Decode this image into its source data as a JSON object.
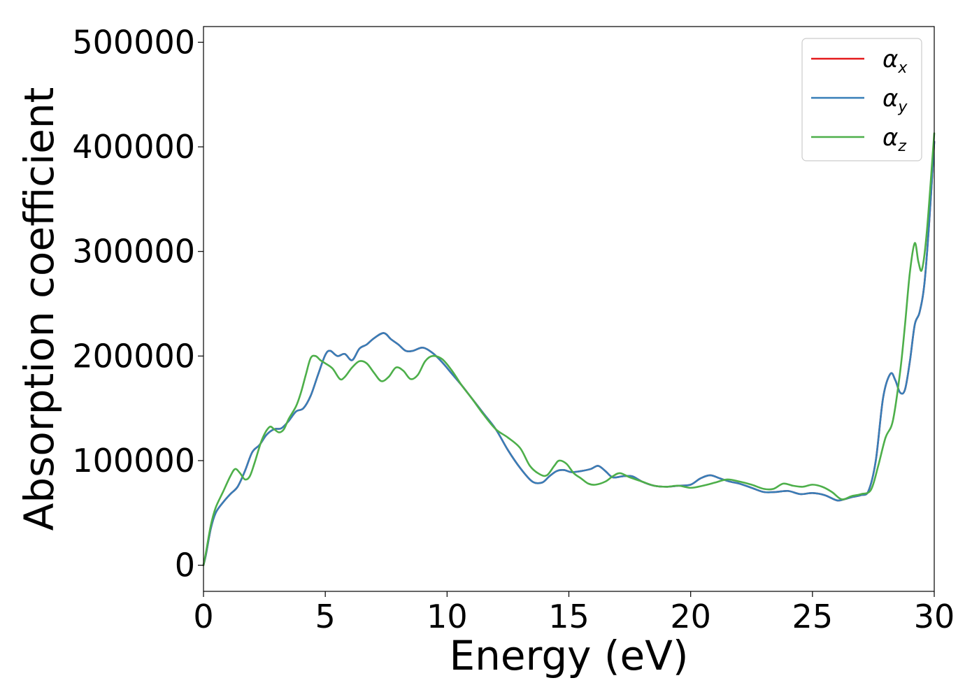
{
  "chart_data": {
    "type": "line",
    "title": "",
    "xlabel": "Energy (eV)",
    "ylabel": "Absorption coefficient",
    "xlim": [
      0,
      30
    ],
    "ylim": [
      -25000,
      515000
    ],
    "x_ticks": [
      0,
      5,
      10,
      15,
      20,
      25,
      30
    ],
    "x_tick_labels": [
      "0",
      "5",
      "10",
      "15",
      "20",
      "25",
      "30"
    ],
    "y_ticks": [
      0,
      100000,
      200000,
      300000,
      400000,
      500000
    ],
    "y_tick_labels": [
      "0",
      "100000",
      "200000",
      "300000",
      "400000",
      "500000"
    ],
    "grid": false,
    "legend_position": "top-right",
    "series": [
      {
        "name": "α",
        "subscript": "x",
        "color": "#e41a1c",
        "x": [
          0,
          0.1,
          0.3,
          0.5,
          0.8,
          1.1,
          1.4,
          1.7,
          2.0,
          2.3,
          2.6,
          2.9,
          3.2,
          3.5,
          3.8,
          4.1,
          4.4,
          4.7,
          5.0,
          5.2,
          5.5,
          5.8,
          6.1,
          6.4,
          6.7,
          7.0,
          7.4,
          7.7,
          8.0,
          8.3,
          8.6,
          9.0,
          9.4,
          9.8,
          10.2,
          10.6,
          11.0,
          11.5,
          12.0,
          12.5,
          13.0,
          13.5,
          13.9,
          14.2,
          14.5,
          14.8,
          15.1,
          15.5,
          15.9,
          16.2,
          16.5,
          16.8,
          17.2,
          17.6,
          18.0,
          18.5,
          19.0,
          19.5,
          20.0,
          20.4,
          20.8,
          21.2,
          21.6,
          22.0,
          22.5,
          23.0,
          23.5,
          24.0,
          24.5,
          25.0,
          25.5,
          26.0,
          26.3,
          26.6,
          27.0,
          27.3,
          27.6,
          27.9,
          28.2,
          28.4,
          28.6,
          28.8,
          29.0,
          29.2,
          29.4,
          29.6,
          29.8,
          30.0
        ],
        "y": [
          0,
          10000,
          35000,
          50000,
          60000,
          68000,
          75000,
          90000,
          108000,
          115000,
          125000,
          130000,
          131000,
          138000,
          147000,
          150000,
          162000,
          182000,
          201000,
          205000,
          200000,
          202000,
          196000,
          207000,
          211000,
          217000,
          222000,
          216000,
          211000,
          205000,
          205000,
          208000,
          203000,
          194000,
          183000,
          172000,
          160000,
          145000,
          130000,
          110000,
          93000,
          80000,
          79000,
          85000,
          90000,
          91000,
          89000,
          90000,
          92000,
          95000,
          90000,
          84000,
          85000,
          85000,
          80000,
          76000,
          75000,
          76000,
          77000,
          83000,
          86000,
          83000,
          80000,
          78000,
          74000,
          70000,
          70000,
          71000,
          68000,
          69000,
          67000,
          62000,
          63000,
          65000,
          67000,
          71000,
          100000,
          160000,
          183000,
          177000,
          165000,
          168000,
          195000,
          230000,
          242000,
          270000,
          330000,
          405000
        ]
      },
      {
        "name": "α",
        "subscript": "y",
        "color": "#377eb8",
        "x": [
          0,
          0.1,
          0.3,
          0.5,
          0.8,
          1.1,
          1.4,
          1.7,
          2.0,
          2.3,
          2.6,
          2.9,
          3.2,
          3.5,
          3.8,
          4.1,
          4.4,
          4.7,
          5.0,
          5.2,
          5.5,
          5.8,
          6.1,
          6.4,
          6.7,
          7.0,
          7.4,
          7.7,
          8.0,
          8.3,
          8.6,
          9.0,
          9.4,
          9.8,
          10.2,
          10.6,
          11.0,
          11.5,
          12.0,
          12.5,
          13.0,
          13.5,
          13.9,
          14.2,
          14.5,
          14.8,
          15.1,
          15.5,
          15.9,
          16.2,
          16.5,
          16.8,
          17.2,
          17.6,
          18.0,
          18.5,
          19.0,
          19.5,
          20.0,
          20.4,
          20.8,
          21.2,
          21.6,
          22.0,
          22.5,
          23.0,
          23.5,
          24.0,
          24.5,
          25.0,
          25.5,
          26.0,
          26.3,
          26.6,
          27.0,
          27.3,
          27.6,
          27.9,
          28.2,
          28.4,
          28.6,
          28.8,
          29.0,
          29.2,
          29.4,
          29.6,
          29.8,
          30.0
        ],
        "y": [
          0,
          10000,
          35000,
          50000,
          60000,
          68000,
          75000,
          90000,
          108000,
          115000,
          125000,
          130000,
          131000,
          138000,
          147000,
          150000,
          162000,
          182000,
          201000,
          205000,
          200000,
          202000,
          196000,
          207000,
          211000,
          217000,
          222000,
          216000,
          211000,
          205000,
          205000,
          208000,
          203000,
          194000,
          183000,
          172000,
          160000,
          145000,
          130000,
          110000,
          93000,
          80000,
          79000,
          85000,
          90000,
          91000,
          89000,
          90000,
          92000,
          95000,
          90000,
          84000,
          85000,
          85000,
          80000,
          76000,
          75000,
          76000,
          77000,
          83000,
          86000,
          83000,
          80000,
          78000,
          74000,
          70000,
          70000,
          71000,
          68000,
          69000,
          67000,
          62000,
          63000,
          65000,
          67000,
          71000,
          100000,
          160000,
          183000,
          177000,
          165000,
          168000,
          195000,
          230000,
          242000,
          270000,
          330000,
          405000
        ]
      },
      {
        "name": "α",
        "subscript": "z",
        "color": "#4daf4a",
        "x": [
          0,
          0.1,
          0.3,
          0.5,
          0.8,
          1.1,
          1.3,
          1.5,
          1.7,
          1.9,
          2.1,
          2.4,
          2.7,
          2.9,
          3.1,
          3.3,
          3.5,
          3.8,
          4.0,
          4.2,
          4.4,
          4.6,
          4.8,
          5.0,
          5.3,
          5.6,
          5.8,
          6.1,
          6.4,
          6.7,
          7.0,
          7.3,
          7.6,
          7.9,
          8.2,
          8.5,
          8.8,
          9.1,
          9.4,
          9.8,
          10.2,
          10.6,
          11.0,
          11.5,
          12.0,
          12.5,
          13.0,
          13.4,
          13.8,
          14.1,
          14.4,
          14.6,
          14.9,
          15.2,
          15.5,
          15.8,
          16.1,
          16.5,
          16.8,
          17.1,
          17.5,
          18.0,
          18.5,
          19.0,
          19.5,
          20.0,
          20.5,
          21.0,
          21.5,
          22.0,
          22.5,
          23.0,
          23.4,
          23.8,
          24.2,
          24.6,
          25.0,
          25.4,
          25.8,
          26.2,
          26.6,
          27.0,
          27.4,
          27.7,
          28.0,
          28.3,
          28.6,
          28.8,
          29.0,
          29.2,
          29.35,
          29.5,
          29.7,
          30.0
        ],
        "y": [
          0,
          12000,
          38000,
          55000,
          70000,
          85000,
          92000,
          88000,
          82000,
          85000,
          98000,
          120000,
          132000,
          130000,
          127000,
          130000,
          140000,
          152000,
          165000,
          182000,
          198000,
          200000,
          196000,
          193000,
          188000,
          178000,
          180000,
          189000,
          195000,
          193000,
          184000,
          176000,
          180000,
          189000,
          186000,
          178000,
          182000,
          195000,
          200000,
          197000,
          186000,
          172000,
          160000,
          144000,
          130000,
          122000,
          112000,
          95000,
          87000,
          86000,
          95000,
          100000,
          97000,
          88000,
          83000,
          78000,
          77000,
          80000,
          85000,
          88000,
          84000,
          80000,
          76000,
          75000,
          76000,
          74000,
          76000,
          79000,
          82000,
          80000,
          77000,
          73000,
          73000,
          78000,
          76000,
          75000,
          77000,
          75000,
          70000,
          63000,
          66000,
          68000,
          72000,
          95000,
          122000,
          138000,
          185000,
          230000,
          280000,
          308000,
          290000,
          283000,
          320000,
          413000
        ]
      }
    ]
  }
}
